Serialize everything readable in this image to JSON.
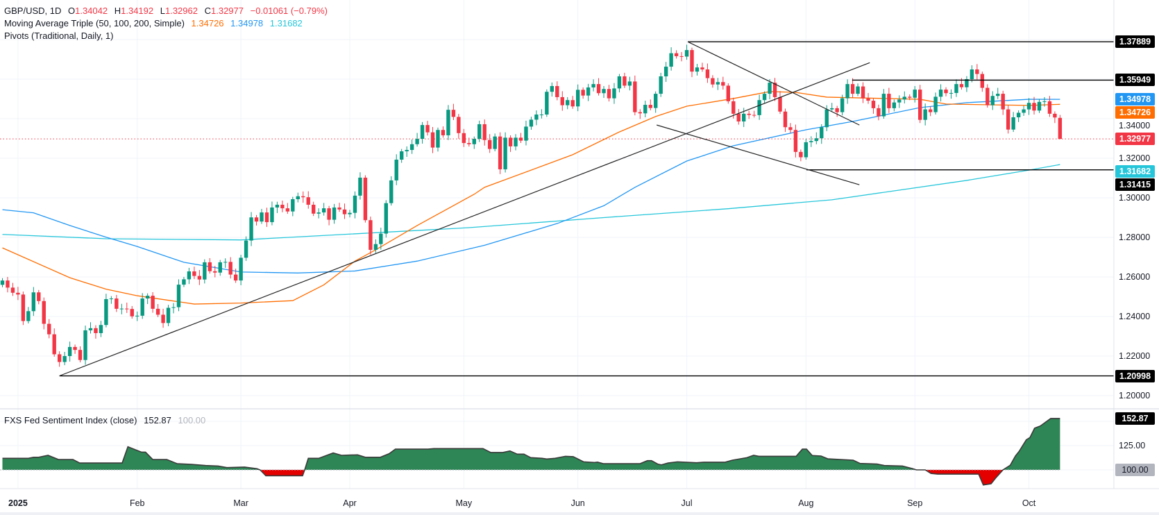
{
  "header": {
    "symbol": "GBP/USD, 1D",
    "o_label": "O",
    "o": "1.34042",
    "h_label": "H",
    "h": "1.34192",
    "l_label": "L",
    "l": "1.32962",
    "c_label": "C",
    "c": "1.32977",
    "change": "−0.01061",
    "change_pct": "(−0.79%)"
  },
  "ma": {
    "label": "Moving Average Triple (50, 100, 200, Simple)",
    "v50": "1.34726",
    "v100": "1.34978",
    "v200": "1.31682"
  },
  "pivots": {
    "label": "Pivots (Traditional, Daily, 1)"
  },
  "indicator": {
    "label": "FXS Fed Sentiment Index (close)",
    "value": "152.87",
    "baseline": "100.00"
  },
  "colors": {
    "up": "#089981",
    "down": "#f23645",
    "ma50": "#ff6d00",
    "ma100": "#2196f3",
    "ma200": "#26c6da",
    "area_up": "#2e8555",
    "area_down": "#e50000",
    "line": "#000000"
  },
  "price_axis": {
    "gridlines": [
      1.2,
      1.22,
      1.24,
      1.26,
      1.28,
      1.3,
      1.32,
      1.34,
      1.36,
      1.38
    ],
    "labels": [
      {
        "price": 1.2,
        "text": "1.20000"
      },
      {
        "price": 1.22,
        "text": "1.22000"
      },
      {
        "price": 1.24,
        "text": "1.24000"
      },
      {
        "price": 1.26,
        "text": "1.26000"
      },
      {
        "price": 1.28,
        "text": "1.28000"
      },
      {
        "price": 1.3,
        "text": "1.30000"
      },
      {
        "price": 1.32,
        "text": "1.32000"
      },
      {
        "price": 1.34,
        "text": "1.34000"
      }
    ],
    "badges": [
      {
        "price": 1.37889,
        "text": "1.37889",
        "color": "#000000"
      },
      {
        "price": 1.35949,
        "text": "1.35949",
        "color": "#000000"
      },
      {
        "price": 1.34978,
        "text": "1.34978",
        "color": "#2196f3"
      },
      {
        "price": 1.34726,
        "text": "1.34726",
        "color": "#ff6d00"
      },
      {
        "price": 1.32977,
        "text": "1.32977",
        "color": "#f23645"
      },
      {
        "price": 1.31682,
        "text": "1.31682",
        "color": "#26c6da"
      },
      {
        "price": 1.31415,
        "text": "1.31415",
        "color": "#000000"
      },
      {
        "price": 1.20998,
        "text": "1.20998",
        "color": "#000000"
      }
    ]
  },
  "indicator_axis": {
    "gridlines": [
      100,
      125,
      150
    ],
    "labels": [
      {
        "value": 125,
        "text": "125.00"
      }
    ],
    "badges": [
      {
        "value": 152.87,
        "text": "152.87",
        "color": "#000000"
      },
      {
        "value": 100,
        "text": "100.00",
        "color": "#b2b5be"
      }
    ]
  },
  "time_axis": [
    {
      "bar": 3,
      "text": "2025"
    },
    {
      "bar": 26,
      "text": "Feb"
    },
    {
      "bar": 46,
      "text": "Mar"
    },
    {
      "bar": 67,
      "text": "Apr"
    },
    {
      "bar": 89,
      "text": "May"
    },
    {
      "bar": 111,
      "text": "Jun"
    },
    {
      "bar": 132,
      "text": "Jul"
    },
    {
      "bar": 155,
      "text": "Aug"
    },
    {
      "bar": 176,
      "text": "Sep"
    },
    {
      "bar": 198,
      "text": "Oct"
    }
  ],
  "chart_data": {
    "type": "candlestick",
    "title": "GBP/USD, 1D",
    "ylim": [
      1.19,
      1.39
    ],
    "first_open": 1.256,
    "last_bar": {
      "o": 1.34042,
      "h": 1.34192,
      "l": 1.32962,
      "c": 1.32977
    },
    "last_price": 1.32977,
    "closes": [
      1.2582,
      1.2546,
      1.252,
      1.2511,
      1.2377,
      1.2427,
      1.2522,
      1.2478,
      1.2363,
      1.231,
      1.2209,
      1.217,
      1.22,
      1.2246,
      1.2231,
      1.218,
      1.233,
      1.2341,
      1.2316,
      1.2357,
      1.2488,
      1.2491,
      1.2439,
      1.244,
      1.2438,
      1.2401,
      1.2404,
      1.2491,
      1.2505,
      1.2439,
      1.2409,
      1.2367,
      1.2444,
      1.2447,
      1.2561,
      1.2588,
      1.2628,
      1.2605,
      1.2587,
      1.2674,
      1.2629,
      1.2622,
      1.2674,
      1.2676,
      1.2612,
      1.2582,
      1.2697,
      1.2784,
      1.2901,
      1.288,
      1.2926,
      1.2877,
      1.2951,
      1.2965,
      1.2947,
      1.2931,
      1.2993,
      1.3008,
      1.3003,
      1.2965,
      1.292,
      1.2926,
      1.2947,
      1.2889,
      1.2951,
      1.2941,
      1.2917,
      1.2924,
      1.3011,
      1.3102,
      1.2887,
      1.2737,
      1.2766,
      1.2819,
      1.2973,
      1.3088,
      1.3193,
      1.3235,
      1.3242,
      1.3271,
      1.3298,
      1.3368,
      1.3331,
      1.3254,
      1.3343,
      1.3316,
      1.3445,
      1.3409,
      1.3327,
      1.3277,
      1.3271,
      1.3298,
      1.3372,
      1.3292,
      1.3247,
      1.331,
      1.3144,
      1.3304,
      1.326,
      1.3304,
      1.3289,
      1.336,
      1.3395,
      1.3421,
      1.3421,
      1.3536,
      1.3565,
      1.3509,
      1.3468,
      1.3494,
      1.3462,
      1.3546,
      1.3517,
      1.3558,
      1.3575,
      1.3529,
      1.355,
      1.3503,
      1.3553,
      1.3614,
      1.3567,
      1.3588,
      1.3433,
      1.3427,
      1.347,
      1.3454,
      1.3526,
      1.3614,
      1.3663,
      1.3731,
      1.3716,
      1.3714,
      1.3747,
      1.3638,
      1.3659,
      1.3649,
      1.3605,
      1.3573,
      1.3585,
      1.3567,
      1.3488,
      1.3425,
      1.3386,
      1.3425,
      1.3419,
      1.3418,
      1.3494,
      1.3526,
      1.3582,
      1.3509,
      1.3436,
      1.3357,
      1.3343,
      1.3232,
      1.3205,
      1.3281,
      1.3287,
      1.3301,
      1.3357,
      1.3447,
      1.3453,
      1.3433,
      1.3503,
      1.3575,
      1.3526,
      1.3563,
      1.3503,
      1.3491,
      1.3453,
      1.3412,
      1.3526,
      1.3453,
      1.3482,
      1.3497,
      1.3511,
      1.3506,
      1.3547,
      1.3394,
      1.3447,
      1.3433,
      1.3511,
      1.3547,
      1.3529,
      1.353,
      1.3575,
      1.3559,
      1.36,
      1.3649,
      1.3626,
      1.3556,
      1.3468,
      1.3515,
      1.3526,
      1.3447,
      1.3345,
      1.3407,
      1.343,
      1.3447,
      1.348,
      1.3441,
      1.3485,
      1.3488,
      1.3425,
      1.3406,
      1.32977
    ],
    "ma50": [
      [
        0,
        1.2747
      ],
      [
        13,
        1.2596
      ],
      [
        20,
        1.2538
      ],
      [
        26,
        1.2505
      ],
      [
        37,
        1.2463
      ],
      [
        46,
        1.2468
      ],
      [
        56,
        1.248
      ],
      [
        62,
        1.256
      ],
      [
        68,
        1.268
      ],
      [
        72,
        1.2737
      ],
      [
        80,
        1.286
      ],
      [
        91,
        1.3018
      ],
      [
        93,
        1.3053
      ],
      [
        110,
        1.3218
      ],
      [
        119,
        1.3333
      ],
      [
        126,
        1.3411
      ],
      [
        132,
        1.3463
      ],
      [
        141,
        1.3502
      ],
      [
        148,
        1.3537
      ],
      [
        153,
        1.3533
      ],
      [
        159,
        1.3509
      ],
      [
        177,
        1.3498
      ],
      [
        182,
        1.3474
      ],
      [
        198,
        1.3467
      ],
      [
        204,
        1.34726
      ]
    ],
    "ma100": [
      [
        0,
        1.294
      ],
      [
        6,
        1.2924
      ],
      [
        13,
        1.286
      ],
      [
        20,
        1.2801
      ],
      [
        26,
        1.2754
      ],
      [
        35,
        1.2674
      ],
      [
        46,
        1.2625
      ],
      [
        57,
        1.262
      ],
      [
        68,
        1.263
      ],
      [
        80,
        1.268
      ],
      [
        93,
        1.276
      ],
      [
        107,
        1.287
      ],
      [
        116,
        1.296
      ],
      [
        122,
        1.3053
      ],
      [
        132,
        1.3186
      ],
      [
        141,
        1.3263
      ],
      [
        155,
        1.3344
      ],
      [
        164,
        1.3386
      ],
      [
        177,
        1.3456
      ],
      [
        186,
        1.3481
      ],
      [
        198,
        1.3498
      ],
      [
        204,
        1.34978
      ]
    ],
    "ma200": [
      [
        0,
        1.2815
      ],
      [
        20,
        1.2793
      ],
      [
        46,
        1.2787
      ],
      [
        90,
        1.2849
      ],
      [
        116,
        1.29
      ],
      [
        140,
        1.2945
      ],
      [
        160,
        1.299
      ],
      [
        186,
        1.3088
      ],
      [
        198,
        1.314
      ],
      [
        204,
        1.31682
      ]
    ],
    "hlines": [
      {
        "from_bar": 132.2,
        "price": 1.37889
      },
      {
        "from_bar": 163.9,
        "price": 1.35949
      },
      {
        "from_bar": 155.1,
        "price": 1.31415
      },
      {
        "from_bar": 11.0,
        "price": 1.20998
      }
    ],
    "trendlines": [
      {
        "a": [
          11.0,
          1.21
        ],
        "b": [
          167.3,
          1.3683
        ]
      },
      {
        "a": [
          132.2,
          1.37889
        ],
        "b": [
          165.3,
          1.3368
        ]
      },
      {
        "a": [
          126.2,
          1.3368
        ],
        "b": [
          165.3,
          1.3066
        ]
      }
    ],
    "sentiment": [
      [
        0,
        111.9
      ],
      [
        5,
        111.9
      ],
      [
        6,
        113
      ],
      [
        7,
        113
      ],
      [
        8.8,
        115
      ],
      [
        10.8,
        110.7
      ],
      [
        13.6,
        110.7
      ],
      [
        14.9,
        107.1
      ],
      [
        23.1,
        107.1
      ],
      [
        24.2,
        123.8
      ],
      [
        26.8,
        118.3
      ],
      [
        27.6,
        118.3
      ],
      [
        29,
        110.7
      ],
      [
        31.7,
        110.7
      ],
      [
        33.7,
        106.4
      ],
      [
        36.5,
        105.7
      ],
      [
        39.2,
        104.5
      ],
      [
        41.6,
        104
      ],
      [
        43.3,
        102.4
      ],
      [
        46.7,
        102.9
      ],
      [
        49.1,
        101.2
      ],
      [
        49.7,
        100
      ],
      [
        50.8,
        94
      ],
      [
        57.9,
        94
      ],
      [
        58.3,
        100
      ],
      [
        59,
        111.9
      ],
      [
        61,
        111.9
      ],
      [
        63.8,
        117.4
      ],
      [
        65.4,
        115
      ],
      [
        68.5,
        115.5
      ],
      [
        70,
        113
      ],
      [
        72.9,
        113
      ],
      [
        74.6,
        116.7
      ],
      [
        75.8,
        121.4
      ],
      [
        82.1,
        121.4
      ],
      [
        83.2,
        121.9
      ],
      [
        92.7,
        121.9
      ],
      [
        94.2,
        117.9
      ],
      [
        96.5,
        117.9
      ],
      [
        97.9,
        119.5
      ],
      [
        99.3,
        116.2
      ],
      [
        100.6,
        116.2
      ],
      [
        101.9,
        112.6
      ],
      [
        104.1,
        111.9
      ],
      [
        105,
        111.2
      ],
      [
        106.6,
        111.9
      ],
      [
        108.6,
        114
      ],
      [
        110.1,
        113.6
      ],
      [
        112.1,
        108.3
      ],
      [
        114.1,
        107.6
      ],
      [
        114.8,
        108
      ],
      [
        115.9,
        106.4
      ],
      [
        123,
        106.4
      ],
      [
        124.4,
        109.5
      ],
      [
        125.2,
        109.5
      ],
      [
        126.4,
        106
      ],
      [
        127.1,
        105.2
      ],
      [
        128.4,
        107.1
      ],
      [
        130.2,
        108.3
      ],
      [
        133.9,
        107.4
      ],
      [
        135.3,
        107.9
      ],
      [
        139.4,
        107.9
      ],
      [
        140.8,
        110
      ],
      [
        143.6,
        112.6
      ],
      [
        144.9,
        115
      ],
      [
        145.9,
        114
      ],
      [
        153.1,
        114
      ],
      [
        154.3,
        121.4
      ],
      [
        155.1,
        121.4
      ],
      [
        156.2,
        114.8
      ],
      [
        157.9,
        114.3
      ],
      [
        159.2,
        111.4
      ],
      [
        164.1,
        110
      ],
      [
        165.4,
        106.7
      ],
      [
        168.7,
        106
      ],
      [
        170.1,
        104.5
      ],
      [
        173.6,
        104
      ],
      [
        175.6,
        101.2
      ],
      [
        176.3,
        100
      ],
      [
        178,
        100
      ],
      [
        179.1,
        96.4
      ],
      [
        180.4,
        95.7
      ],
      [
        188.3,
        95.7
      ],
      [
        189.2,
        84.5
      ],
      [
        190.7,
        85.7
      ],
      [
        191.6,
        91.7
      ],
      [
        193,
        100
      ],
      [
        194.4,
        104.8
      ],
      [
        195.4,
        114.3
      ],
      [
        196.1,
        119
      ],
      [
        197.5,
        131
      ],
      [
        198.2,
        133.3
      ],
      [
        199.1,
        142.9
      ],
      [
        200.2,
        145.2
      ],
      [
        202.2,
        152.9
      ],
      [
        204,
        152.87
      ]
    ]
  }
}
